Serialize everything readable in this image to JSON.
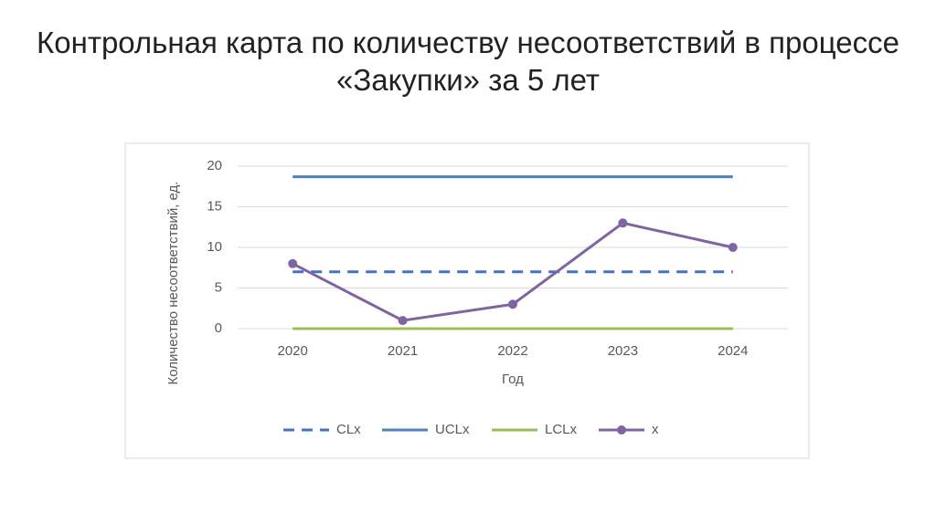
{
  "chart_data": {
    "type": "line",
    "title": "Контрольная карта по количеству несоответствий в процессе «Закупки» за 5 лет",
    "x_label": "Год",
    "y_label": "Количество несоответствий, ед.",
    "categories": [
      "2020",
      "2021",
      "2022",
      "2023",
      "2024"
    ],
    "series": [
      {
        "name": "CLx",
        "color": "#4472c4",
        "dashed": true,
        "values": [
          7,
          7,
          7,
          7,
          7
        ]
      },
      {
        "name": "UCLx",
        "color": "#4f81bd",
        "values": [
          18.7,
          18.7,
          18.7,
          18.7,
          18.7
        ]
      },
      {
        "name": "LCLx",
        "color": "#9bbb59",
        "values": [
          0,
          0,
          0,
          0,
          0
        ]
      },
      {
        "name": "x",
        "color": "#8064a2",
        "markers": true,
        "values": [
          8,
          1,
          3,
          13,
          10
        ]
      }
    ],
    "ylim": [
      0,
      20
    ],
    "yticks": [
      0,
      5,
      10,
      15,
      20
    ],
    "grid": true,
    "legend": "bottom"
  }
}
